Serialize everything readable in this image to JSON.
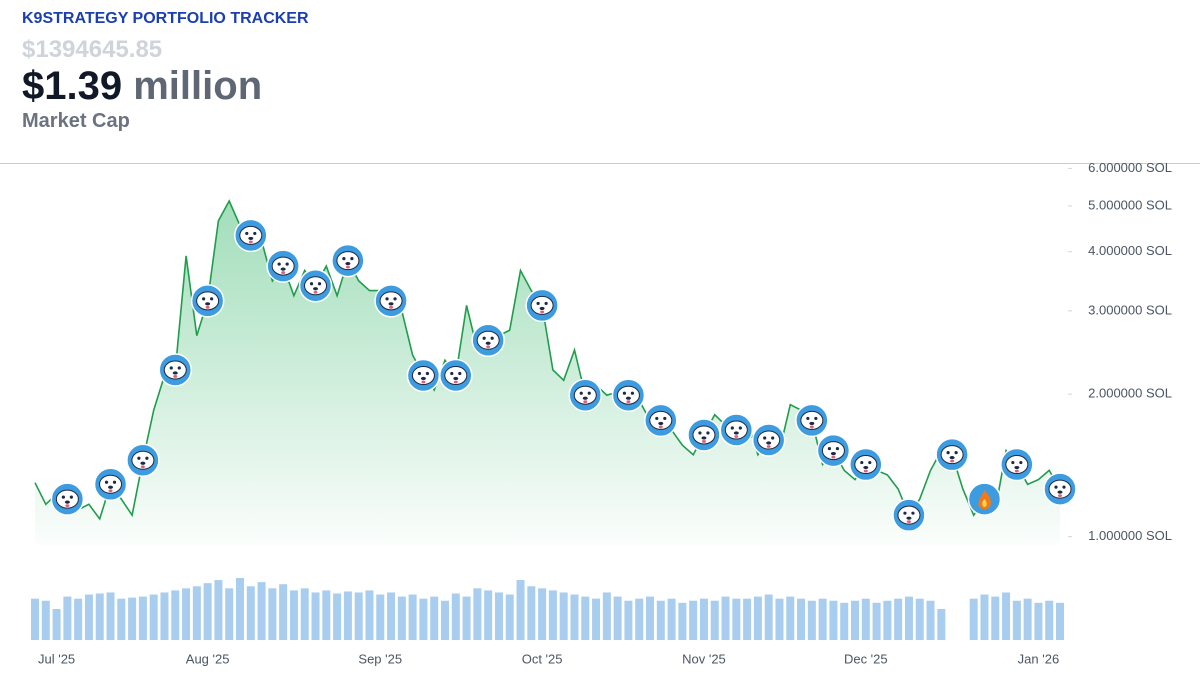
{
  "header": {
    "title": "K9STRATEGY PORTFOLIO TRACKER",
    "raw_value": "$1394645.85",
    "value": "$1.39",
    "unit": "million",
    "label": "Market Cap"
  },
  "chart_data": {
    "type": "line",
    "categories": [
      null,
      null,
      "Jul '25",
      null,
      null,
      null,
      null,
      null,
      null,
      null,
      null,
      null,
      null,
      null,
      null,
      null,
      "Aug '25",
      null,
      null,
      null,
      null,
      null,
      null,
      null,
      null,
      null,
      null,
      null,
      null,
      null,
      null,
      null,
      "Sep '25",
      null,
      null,
      null,
      null,
      null,
      null,
      null,
      null,
      null,
      null,
      null,
      null,
      null,
      null,
      "Oct '25",
      null,
      null,
      null,
      null,
      null,
      null,
      null,
      null,
      null,
      null,
      null,
      null,
      null,
      null,
      "Nov '25",
      null,
      null,
      null,
      null,
      null,
      null,
      null,
      null,
      null,
      null,
      null,
      null,
      null,
      null,
      "Dec '25",
      null,
      null,
      null,
      null,
      null,
      null,
      null,
      null,
      null,
      null,
      null,
      null,
      null,
      null,
      null,
      "Jan '26",
      null,
      null
    ],
    "series": [
      {
        "color": "#1f9d4c",
        "values": [
          1.3,
          1.17,
          1.23,
          1.2,
          1.14,
          1.17,
          1.09,
          1.29,
          1.2,
          1.11,
          1.45,
          1.85,
          2.19,
          2.25,
          3.92,
          2.66,
          3.15,
          4.65,
          5.12,
          4.54,
          4.33,
          4.22,
          3.47,
          3.73,
          3.23,
          3.65,
          3.39,
          3.73,
          3.23,
          3.83,
          3.47,
          3.31,
          3.31,
          3.15,
          3.0,
          2.42,
          2.19,
          2.04,
          2.36,
          2.19,
          3.08,
          2.48,
          2.6,
          2.66,
          2.73,
          3.65,
          3.31,
          3.08,
          2.25,
          2.14,
          2.48,
          1.99,
          2.09,
          1.99,
          2.02,
          1.99,
          1.94,
          1.76,
          1.76,
          1.68,
          1.56,
          1.49,
          1.64,
          1.81,
          1.72,
          1.68,
          1.76,
          1.49,
          1.6,
          1.52,
          1.9,
          1.85,
          1.76,
          1.42,
          1.52,
          1.38,
          1.32,
          1.42,
          1.38,
          1.35,
          1.26,
          1.11,
          1.2,
          1.38,
          1.52,
          1.49,
          1.26,
          1.11,
          1.2,
          1.14,
          1.52,
          1.42,
          1.29,
          1.32,
          1.38,
          1.26
        ]
      }
    ],
    "volume": {
      "color": "#a9cdee",
      "values": [
        40,
        38,
        30,
        42,
        40,
        44,
        45,
        46,
        40,
        41,
        42,
        44,
        46,
        48,
        50,
        52,
        55,
        58,
        50,
        60,
        52,
        56,
        50,
        54,
        48,
        50,
        46,
        48,
        45,
        47,
        46,
        48,
        44,
        46,
        42,
        44,
        40,
        42,
        38,
        45,
        42,
        50,
        48,
        46,
        44,
        58,
        52,
        50,
        48,
        46,
        44,
        42,
        40,
        46,
        42,
        38,
        40,
        42,
        38,
        40,
        36,
        38,
        40,
        38,
        42,
        40,
        40,
        42,
        44,
        40,
        42,
        40,
        38,
        40,
        38,
        36,
        38,
        40,
        36,
        38,
        40,
        42,
        40,
        38,
        30,
        null,
        null,
        40,
        44,
        42,
        46,
        38,
        40,
        36,
        38,
        36
      ]
    },
    "log_scale": true,
    "fill": true,
    "ylim": [
      0.96,
      6.1
    ],
    "yticks": [
      {
        "value": 1,
        "label": "1.000000 SOL"
      },
      {
        "value": 2,
        "label": "2.000000 SOL"
      },
      {
        "value": 3,
        "label": "3.000000 SOL"
      },
      {
        "value": 4,
        "label": "4.000000 SOL"
      },
      {
        "value": 5,
        "label": "5.000000 SOL"
      },
      {
        "value": 6,
        "label": "6.000000 SOL"
      }
    ]
  }
}
